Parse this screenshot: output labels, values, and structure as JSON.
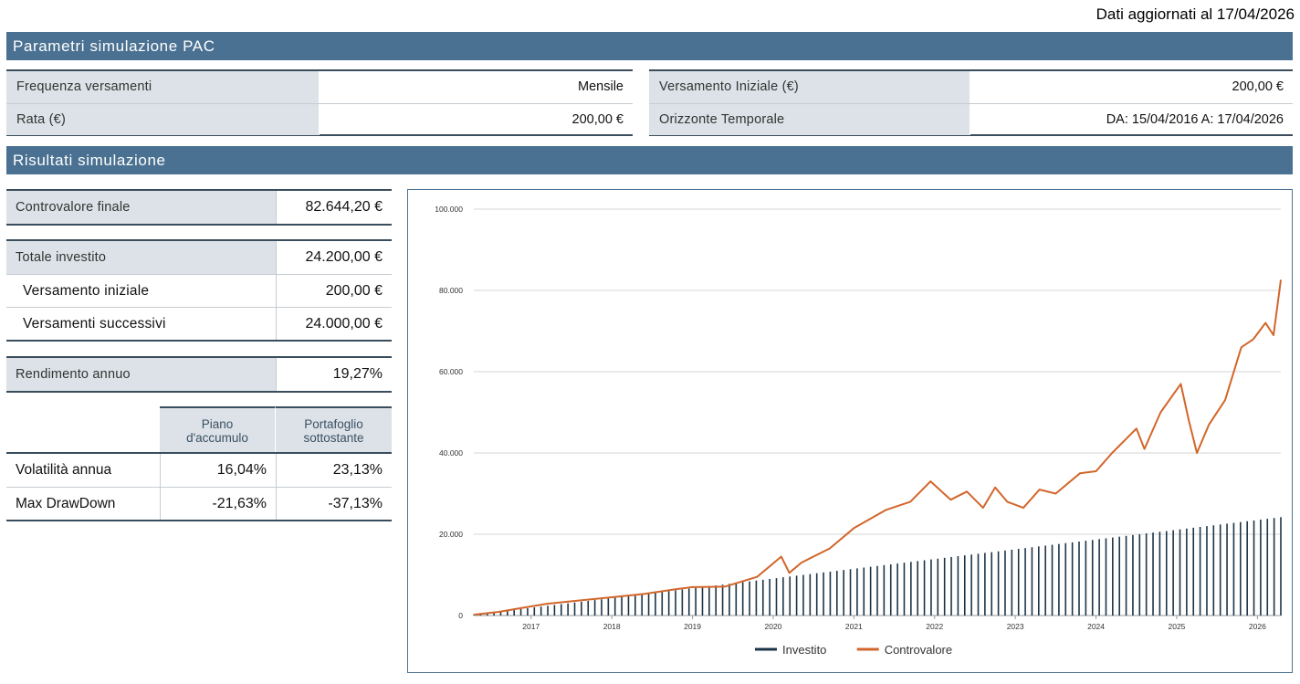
{
  "updated": "Dati aggiornati al 17/04/2026",
  "section_params": "Parametri simulazione PAC",
  "section_results": "Risultati simulazione",
  "params_left": [
    {
      "label": "Frequenza versamenti",
      "value": "Mensile"
    },
    {
      "label": "Rata (€)",
      "value": "200,00 €"
    }
  ],
  "params_right": [
    {
      "label": "Versamento Iniziale (€)",
      "value": "200,00 €"
    },
    {
      "label": "Orizzonte Temporale",
      "value": "DA: 15/04/2016 A: 17/04/2026"
    }
  ],
  "results": {
    "controvalore": {
      "label": "Controvalore finale",
      "value": "82.644,20 €"
    },
    "totale": {
      "label": "Totale investito",
      "value": "24.200,00 €"
    },
    "versamento_iniziale": {
      "label": "Versamento iniziale",
      "value": "200,00 €"
    },
    "versamenti_successivi": {
      "label": "Versamenti successivi",
      "value": "24.000,00 €"
    },
    "rendimento": {
      "label": "Rendimento annuo",
      "value": "19,27%"
    }
  },
  "risk_table": {
    "col1": "Piano\nd'accumulo",
    "col2": "Portafoglio\nsottostante",
    "rows": [
      {
        "label": "Volatilità annua",
        "v1": "16,04%",
        "v2": "23,13%"
      },
      {
        "label": "Max DrawDown",
        "v1": "-21,63%",
        "v2": "-37,13%"
      }
    ]
  },
  "colors": {
    "investito": "#1c3447",
    "controvalore": "#d2662a",
    "band": "#4a7191",
    "label_bg": "#dce2e7"
  },
  "chart_data": {
    "type": "line",
    "y_ticks": [
      "0",
      "20.000",
      "40.000",
      "60.000",
      "80.000",
      "100.000"
    ],
    "ylim": [
      0,
      100000
    ],
    "x_tick_labels": [
      "2017",
      "2018",
      "2019",
      "2020",
      "2021",
      "2022",
      "2023",
      "2024",
      "2025",
      "2026"
    ],
    "x_range": [
      2016.29,
      2026.29
    ],
    "grid": true,
    "legend_position": "bottom",
    "series": [
      {
        "name": "Investito",
        "render": "bars",
        "color": "#1c3447",
        "points": [
          [
            2016.29,
            200
          ],
          [
            2026.29,
            24200
          ]
        ]
      },
      {
        "name": "Controvalore",
        "render": "line",
        "color": "#d2662a",
        "points": [
          [
            2016.29,
            200
          ],
          [
            2016.6,
            900
          ],
          [
            2016.9,
            1900
          ],
          [
            2017.2,
            2900
          ],
          [
            2017.6,
            3700
          ],
          [
            2018.0,
            4500
          ],
          [
            2018.4,
            5300
          ],
          [
            2018.8,
            6500
          ],
          [
            2019.0,
            7000
          ],
          [
            2019.4,
            7100
          ],
          [
            2019.8,
            9500
          ],
          [
            2020.1,
            14500
          ],
          [
            2020.2,
            10500
          ],
          [
            2020.35,
            13000
          ],
          [
            2020.7,
            16500
          ],
          [
            2021.0,
            21500
          ],
          [
            2021.4,
            26000
          ],
          [
            2021.7,
            28000
          ],
          [
            2021.95,
            33000
          ],
          [
            2022.2,
            28500
          ],
          [
            2022.4,
            30500
          ],
          [
            2022.6,
            26500
          ],
          [
            2022.75,
            31500
          ],
          [
            2022.9,
            28000
          ],
          [
            2023.1,
            26500
          ],
          [
            2023.3,
            31000
          ],
          [
            2023.5,
            30000
          ],
          [
            2023.8,
            35000
          ],
          [
            2024.0,
            35500
          ],
          [
            2024.2,
            40000
          ],
          [
            2024.5,
            46000
          ],
          [
            2024.6,
            41000
          ],
          [
            2024.8,
            50000
          ],
          [
            2025.05,
            57000
          ],
          [
            2025.15,
            48000
          ],
          [
            2025.25,
            40000
          ],
          [
            2025.4,
            47000
          ],
          [
            2025.6,
            53000
          ],
          [
            2025.8,
            66000
          ],
          [
            2025.95,
            68000
          ],
          [
            2026.1,
            72000
          ],
          [
            2026.2,
            69000
          ],
          [
            2026.29,
            82600
          ]
        ]
      }
    ]
  }
}
